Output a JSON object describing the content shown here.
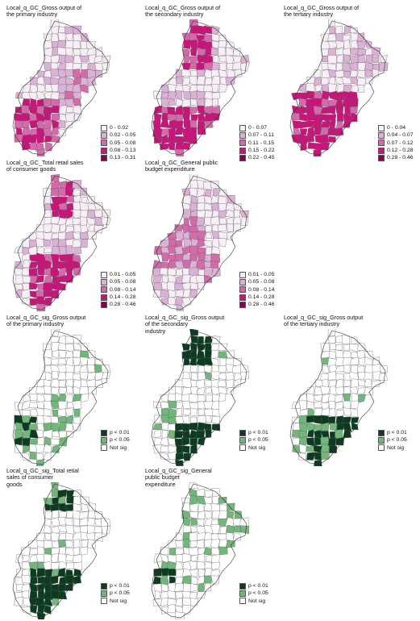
{
  "palettes": {
    "gc": [
      "#f7eef6",
      "#dcb1d6",
      "#d36aa9",
      "#c7157a",
      "#8a0049"
    ],
    "sig": [
      "#0d3b22",
      "#71b77a",
      "#ffffff"
    ]
  },
  "panels": [
    {
      "title": "Local_q_GC_Gross output of\nthe primary industry",
      "kind": "gc",
      "legend": [
        "0 - 0.02",
        "0.02 - 0.05",
        "0.05 - 0.08",
        "0.08 - 0.13",
        "0.13 - 0.31"
      ]
    },
    {
      "title": "Local_q_GC_Gross output of\nthe secondary industry",
      "kind": "gc",
      "legend": [
        "0 - 0.07",
        "0.07 - 0.11",
        "0.11 - 0.15",
        "0.15 - 0.22",
        "0.22 - 0.45"
      ]
    },
    {
      "title": "Local_q_GC_Gross output of\nthe tertiary industry",
      "kind": "gc",
      "legend": [
        "0 - 0.04",
        "0.04 - 0.07",
        "0.07 - 0.12",
        "0.12 - 0.28",
        "0.28 - 0.46"
      ]
    },
    {
      "title": "Local_q_GC_Total retail sales\nof consumer goods",
      "kind": "gc",
      "legend": [
        "0.01 - 0.05",
        "0.05 - 0.08",
        "0.08 - 0.14",
        "0.14 - 0.28",
        "0.28 - 0.46"
      ]
    },
    {
      "title": "Local_q_GC_General public\nbudget expenditure",
      "kind": "gc",
      "legend": [
        "0.01 - 0.05",
        "0.05 - 0.08",
        "0.08 - 0.14",
        "0.14 - 0.28",
        "0.28 - 0.46"
      ]
    },
    {
      "title": "Local_q_GC_sig_Gross output\nof the primary industry",
      "kind": "sig",
      "legend": [
        "p < 0.01",
        "p < 0.05",
        "Not sig"
      ]
    },
    {
      "title": "Local_q_GC_sig_Gross output\nof the secondary\nindustry",
      "kind": "sig",
      "legend": [
        "p < 0.01",
        "p < 0.05",
        "Not sig"
      ]
    },
    {
      "title": "Local_q_GC_sig_Gross output\nof the tertiary industry",
      "kind": "sig",
      "legend": [
        "p < 0.01",
        "p < 0.05",
        "Not sig"
      ]
    },
    {
      "title": "Local_q_GC_sig_Total retial\nsales of consumer\ngoods",
      "kind": "sig",
      "legend": [
        "p < 0.01",
        "p < 0.05",
        "Not sig"
      ]
    },
    {
      "title": "Local_q_GC_sig_General\npublic budget\nexpenditure",
      "kind": "sig",
      "legend": [
        "p < 0.01",
        "p < 0.05",
        "Not sig"
      ]
    }
  ]
}
